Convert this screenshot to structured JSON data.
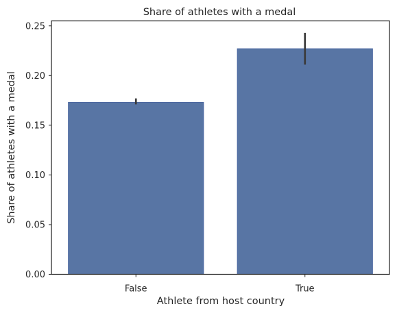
{
  "chart_data": {
    "type": "bar",
    "title": "Share of athletes with a medal",
    "xlabel": "Athlete from host country",
    "ylabel": "Share of athletes with a medal",
    "categories": [
      "False",
      "True"
    ],
    "values": [
      0.173,
      0.227
    ],
    "error_bars": [
      {
        "low": 0.171,
        "high": 0.177
      },
      {
        "low": 0.211,
        "high": 0.243
      }
    ],
    "ylim": [
      0,
      0.255
    ],
    "yticks": [
      0.0,
      0.05,
      0.1,
      0.15,
      0.2,
      0.25
    ],
    "ytick_labels": [
      "0.00",
      "0.05",
      "0.10",
      "0.15",
      "0.20",
      "0.25"
    ],
    "grid": false,
    "bar_color": "#5875a4",
    "bar_edge_color": "#4c68a0",
    "error_color": "#3a3a3a",
    "axis_color": "#262626"
  }
}
